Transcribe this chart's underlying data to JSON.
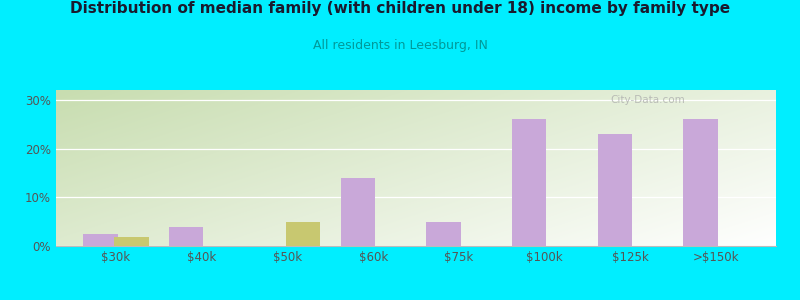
{
  "title": "Distribution of median family (with children under 18) income by family type",
  "subtitle": "All residents in Leesburg, IN",
  "categories": [
    "$30k",
    "$40k",
    "$50k",
    "$60k",
    "$75k",
    "$100k",
    "$125k",
    ">$150k"
  ],
  "married_couple": [
    2.5,
    4.0,
    0.0,
    14.0,
    5.0,
    26.0,
    23.0,
    26.0
  ],
  "female_no_husband": [
    1.8,
    0.0,
    5.0,
    0.0,
    0.0,
    0.0,
    0.0,
    0.0
  ],
  "married_color": "#c9a8d9",
  "female_color": "#c8c870",
  "outer_bg": "#00eeff",
  "title_color": "#1a1a2e",
  "subtitle_color": "#009999",
  "ytick_labels": [
    "0%",
    "10%",
    "20%",
    "30%"
  ],
  "yticks": [
    0,
    10,
    20,
    30
  ],
  "ylim": [
    0,
    32
  ],
  "bar_width": 0.4,
  "bg_color_left": "#c8ddb0",
  "bg_color_right": "#f0f8e8"
}
